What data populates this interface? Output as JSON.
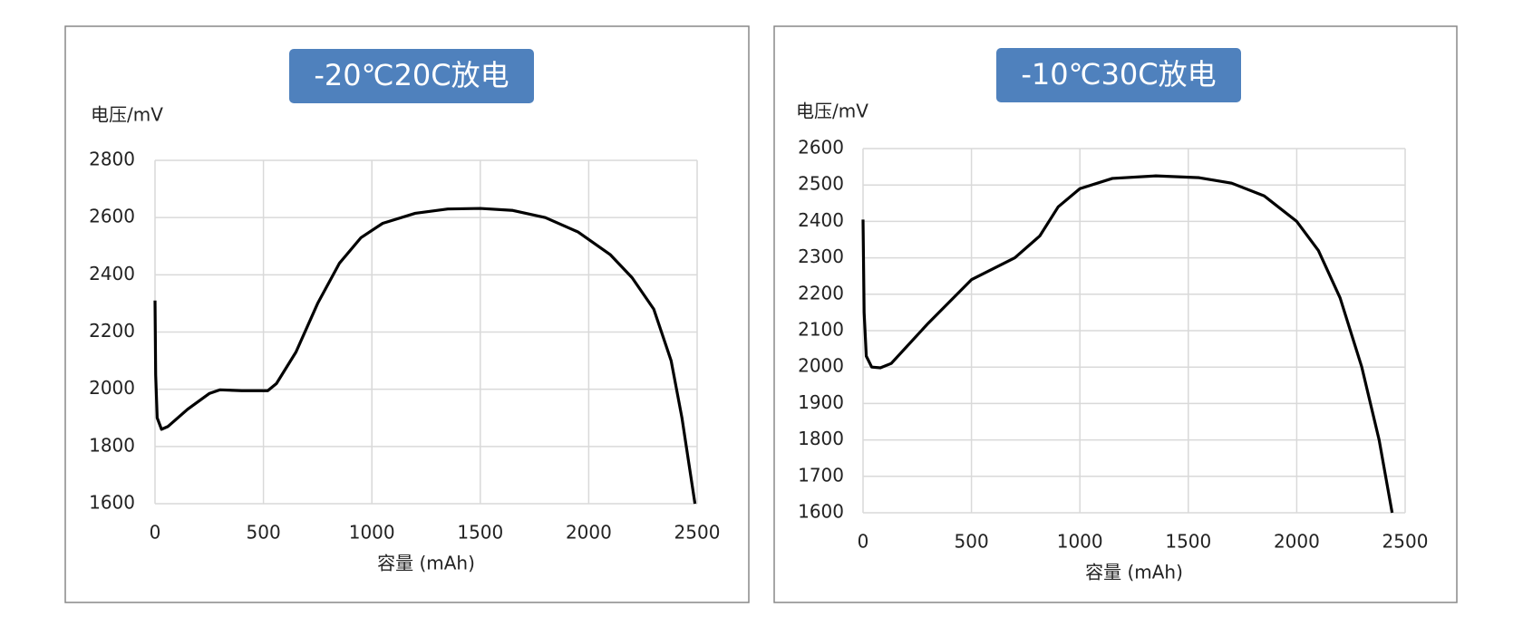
{
  "chart_data": [
    {
      "type": "line",
      "title": "-20℃20C放电",
      "y_label": "电压/mV",
      "x_label": "容量 (mAh)",
      "x": [
        0,
        3,
        10,
        30,
        60,
        150,
        250,
        300,
        400,
        520,
        560,
        650,
        750,
        850,
        950,
        1050,
        1200,
        1350,
        1500,
        1650,
        1800,
        1950,
        2100,
        2200,
        2300,
        2380,
        2430,
        2460,
        2490
      ],
      "values": [
        2310,
        2050,
        1900,
        1860,
        1870,
        1930,
        1985,
        1998,
        1995,
        1995,
        2020,
        2130,
        2300,
        2440,
        2530,
        2580,
        2615,
        2630,
        2632,
        2625,
        2600,
        2550,
        2470,
        2390,
        2280,
        2100,
        1900,
        1750,
        1600
      ],
      "color": "#000000",
      "xlim": [
        0,
        2500
      ],
      "xticks": [
        0,
        500,
        1000,
        1500,
        2000,
        2500
      ],
      "ylim": [
        1600,
        2800
      ],
      "yticks": [
        1600,
        1800,
        2000,
        2200,
        2400,
        2600,
        2800
      ],
      "grid": true
    },
    {
      "type": "line",
      "title": "-10℃30C放电",
      "y_label": "电压/mV",
      "x_label": "容量 (mAh)",
      "x": [
        0,
        5,
        15,
        40,
        80,
        130,
        300,
        500,
        700,
        815,
        900,
        1000,
        1150,
        1350,
        1550,
        1700,
        1850,
        2000,
        2100,
        2200,
        2300,
        2380,
        2440
      ],
      "values": [
        2405,
        2150,
        2030,
        2000,
        1998,
        2010,
        2120,
        2240,
        2300,
        2360,
        2440,
        2490,
        2518,
        2525,
        2520,
        2505,
        2470,
        2400,
        2320,
        2190,
        2000,
        1800,
        1600
      ],
      "color": "#000000",
      "xlim": [
        0,
        2500
      ],
      "xticks": [
        0,
        500,
        1000,
        1500,
        2000,
        2500
      ],
      "ylim": [
        1600,
        2600
      ],
      "yticks": [
        1600,
        1700,
        1800,
        1900,
        2000,
        2100,
        2200,
        2300,
        2400,
        2500,
        2600
      ],
      "grid": true
    }
  ]
}
